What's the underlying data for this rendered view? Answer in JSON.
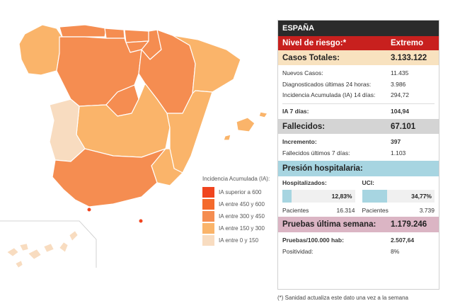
{
  "panel": {
    "header": "ESPAÑA",
    "risk_label": "Nivel de riesgo:*",
    "risk_value": "Extremo",
    "casos": {
      "label": "Casos Totales:",
      "value": "3.133.122",
      "rows": [
        {
          "label": "Nuevos Casos:",
          "value": "11.435"
        },
        {
          "label": "Diagnosticados últimas 24 horas:",
          "value": "3.986"
        },
        {
          "label": "Incidencia Acumulada (IA) 14 días:",
          "value": "294,72"
        }
      ],
      "ia7_label": "IA 7 días:",
      "ia7_value": "104,94"
    },
    "fallecidos": {
      "label": "Fallecidos:",
      "value": "67.101",
      "incremento_label": "Incremento:",
      "incremento_value": "397",
      "ultimos_label": "Fallecidos últimos 7 días:",
      "ultimos_value": "1.103"
    },
    "presion": {
      "label": "Presión hospitalaria:",
      "hosp_label": "Hospitalizados:",
      "hosp_pct": "12,83%",
      "hosp_fraction": 0.1283,
      "hosp_pacientes_label": "Pacientes",
      "hosp_pacientes": "16.314",
      "uci_label": "UCI:",
      "uci_pct": "34,77%",
      "uci_fraction": 0.3477,
      "uci_pacientes_label": "Pacientes",
      "uci_pacientes": "3.739"
    },
    "pruebas": {
      "label": "Pruebas última semana:",
      "value": "1.179.246",
      "rows": [
        {
          "label": "Pruebas/100.000 hab:",
          "value": "2.507,64"
        },
        {
          "label": "Positividad:",
          "value": "8%"
        }
      ]
    }
  },
  "legend": {
    "title": "Incidencia Acumulada (IA):",
    "items": [
      {
        "label": "IA superior a 600",
        "color": "#f0451f"
      },
      {
        "label": "IA entre 450 y 600",
        "color": "#f46a2c"
      },
      {
        "label": "IA entre 300 y 450",
        "color": "#f58d51"
      },
      {
        "label": "IA entre 150 y 300",
        "color": "#fab46a"
      },
      {
        "label": "IA entre 0 y 150",
        "color": "#f8dcc0"
      }
    ]
  },
  "footnote": "(*) Sanidad actualiza este dato una vez a la semana"
}
